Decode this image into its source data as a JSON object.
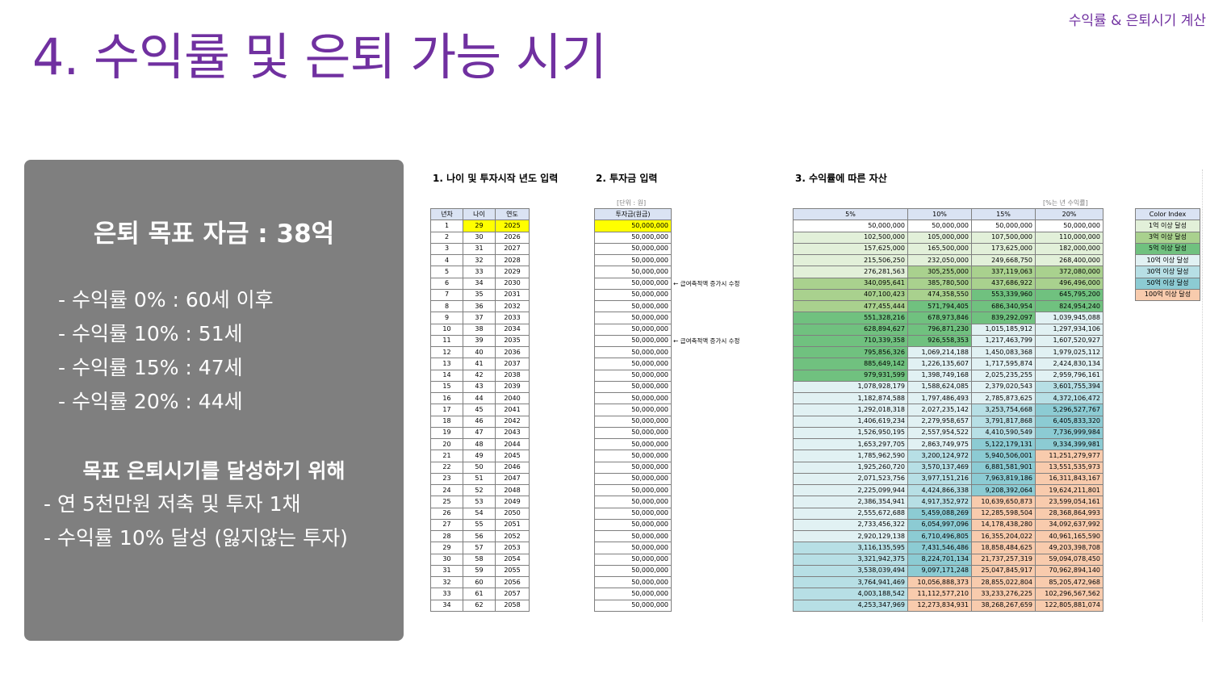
{
  "page": {
    "title": "4. 수익률 및 은퇴 가능 시기",
    "corner_title": "수익률 & 은퇴시기 계산"
  },
  "summary": {
    "goal": "은퇴 목표 자금 : 38억",
    "rates": [
      "- 수익률 0% : 60세 이후",
      "- 수익률 10% : 51세",
      "- 수익률 15% : 47세",
      "- 수익률 20% : 44세"
    ],
    "plan_heading": "목표 은퇴시기를 달성하기 위해",
    "plan_items": [
      "- 연 5천만원 저축 및 투자 1채",
      "- 수익률 10% 달성 (잃지않는 투자)"
    ]
  },
  "sections": {
    "age_title": "1. 나이 및 투자시작 년도 입력",
    "invest_title": "2. 투자금 입력",
    "asset_title": "3. 수익률에 따른 자산"
  },
  "notes": {
    "unit": "[단위 : 원]",
    "rate_unit": "[%는 년 수익률]",
    "salary_note": "← 급여축적액 증가시 수정"
  },
  "age_table": {
    "headers": [
      "년차",
      "나이",
      "연도"
    ]
  },
  "invest_table": {
    "header": "투자금(원금)"
  },
  "asset_table": {
    "headers": [
      "5%",
      "10%",
      "15%",
      "20%"
    ]
  },
  "rows": [
    {
      "n": "1",
      "age": "29",
      "year": "2025",
      "inv": "50,000,000",
      "v": [
        "50,000,000",
        "50,000,000",
        "50,000,000",
        "50,000,000"
      ]
    },
    {
      "n": "2",
      "age": "30",
      "year": "2026",
      "inv": "50,000,000",
      "v": [
        "102,500,000",
        "105,000,000",
        "107,500,000",
        "110,000,000"
      ]
    },
    {
      "n": "3",
      "age": "31",
      "year": "2027",
      "inv": "50,000,000",
      "v": [
        "157,625,000",
        "165,500,000",
        "173,625,000",
        "182,000,000"
      ]
    },
    {
      "n": "4",
      "age": "32",
      "year": "2028",
      "inv": "50,000,000",
      "v": [
        "215,506,250",
        "232,050,000",
        "249,668,750",
        "268,400,000"
      ]
    },
    {
      "n": "5",
      "age": "33",
      "year": "2029",
      "inv": "50,000,000",
      "v": [
        "276,281,563",
        "305,255,000",
        "337,119,063",
        "372,080,000"
      ]
    },
    {
      "n": "6",
      "age": "34",
      "year": "2030",
      "inv": "50,000,000",
      "v": [
        "340,095,641",
        "385,780,500",
        "437,686,922",
        "496,496,000"
      ]
    },
    {
      "n": "7",
      "age": "35",
      "year": "2031",
      "inv": "50,000,000",
      "v": [
        "407,100,423",
        "474,358,550",
        "553,339,960",
        "645,795,200"
      ]
    },
    {
      "n": "8",
      "age": "36",
      "year": "2032",
      "inv": "50,000,000",
      "v": [
        "477,455,444",
        "571,794,405",
        "686,340,954",
        "824,954,240"
      ]
    },
    {
      "n": "9",
      "age": "37",
      "year": "2033",
      "inv": "50,000,000",
      "v": [
        "551,328,216",
        "678,973,846",
        "839,292,097",
        "1,039,945,088"
      ]
    },
    {
      "n": "10",
      "age": "38",
      "year": "2034",
      "inv": "50,000,000",
      "v": [
        "628,894,627",
        "796,871,230",
        "1,015,185,912",
        "1,297,934,106"
      ]
    },
    {
      "n": "11",
      "age": "39",
      "year": "2035",
      "inv": "50,000,000",
      "v": [
        "710,339,358",
        "926,558,353",
        "1,217,463,799",
        "1,607,520,927"
      ]
    },
    {
      "n": "12",
      "age": "40",
      "year": "2036",
      "inv": "50,000,000",
      "v": [
        "795,856,326",
        "1,069,214,188",
        "1,450,083,368",
        "1,979,025,112"
      ]
    },
    {
      "n": "13",
      "age": "41",
      "year": "2037",
      "inv": "50,000,000",
      "v": [
        "885,649,142",
        "1,226,135,607",
        "1,717,595,874",
        "2,424,830,134"
      ]
    },
    {
      "n": "14",
      "age": "42",
      "year": "2038",
      "inv": "50,000,000",
      "v": [
        "979,931,599",
        "1,398,749,168",
        "2,025,235,255",
        "2,959,796,161"
      ]
    },
    {
      "n": "15",
      "age": "43",
      "year": "2039",
      "inv": "50,000,000",
      "v": [
        "1,078,928,179",
        "1,588,624,085",
        "2,379,020,543",
        "3,601,755,394"
      ]
    },
    {
      "n": "16",
      "age": "44",
      "year": "2040",
      "inv": "50,000,000",
      "v": [
        "1,182,874,588",
        "1,797,486,493",
        "2,785,873,625",
        "4,372,106,472"
      ]
    },
    {
      "n": "17",
      "age": "45",
      "year": "2041",
      "inv": "50,000,000",
      "v": [
        "1,292,018,318",
        "2,027,235,142",
        "3,253,754,668",
        "5,296,527,767"
      ]
    },
    {
      "n": "18",
      "age": "46",
      "year": "2042",
      "inv": "50,000,000",
      "v": [
        "1,406,619,234",
        "2,279,958,657",
        "3,791,817,868",
        "6,405,833,320"
      ]
    },
    {
      "n": "19",
      "age": "47",
      "year": "2043",
      "inv": "50,000,000",
      "v": [
        "1,526,950,195",
        "2,557,954,522",
        "4,410,590,549",
        "7,736,999,984"
      ]
    },
    {
      "n": "20",
      "age": "48",
      "year": "2044",
      "inv": "50,000,000",
      "v": [
        "1,653,297,705",
        "2,863,749,975",
        "5,122,179,131",
        "9,334,399,981"
      ]
    },
    {
      "n": "21",
      "age": "49",
      "year": "2045",
      "inv": "50,000,000",
      "v": [
        "1,785,962,590",
        "3,200,124,972",
        "5,940,506,001",
        "11,251,279,977"
      ]
    },
    {
      "n": "22",
      "age": "50",
      "year": "2046",
      "inv": "50,000,000",
      "v": [
        "1,925,260,720",
        "3,570,137,469",
        "6,881,581,901",
        "13,551,535,973"
      ]
    },
    {
      "n": "23",
      "age": "51",
      "year": "2047",
      "inv": "50,000,000",
      "v": [
        "2,071,523,756",
        "3,977,151,216",
        "7,963,819,186",
        "16,311,843,167"
      ]
    },
    {
      "n": "24",
      "age": "52",
      "year": "2048",
      "inv": "50,000,000",
      "v": [
        "2,225,099,944",
        "4,424,866,338",
        "9,208,392,064",
        "19,624,211,801"
      ]
    },
    {
      "n": "25",
      "age": "53",
      "year": "2049",
      "inv": "50,000,000",
      "v": [
        "2,386,354,941",
        "4,917,352,972",
        "10,639,650,873",
        "23,599,054,161"
      ]
    },
    {
      "n": "26",
      "age": "54",
      "year": "2050",
      "inv": "50,000,000",
      "v": [
        "2,555,672,688",
        "5,459,088,269",
        "12,285,598,504",
        "28,368,864,993"
      ]
    },
    {
      "n": "27",
      "age": "55",
      "year": "2051",
      "inv": "50,000,000",
      "v": [
        "2,733,456,322",
        "6,054,997,096",
        "14,178,438,280",
        "34,092,637,992"
      ]
    },
    {
      "n": "28",
      "age": "56",
      "year": "2052",
      "inv": "50,000,000",
      "v": [
        "2,920,129,138",
        "6,710,496,805",
        "16,355,204,022",
        "40,961,165,590"
      ]
    },
    {
      "n": "29",
      "age": "57",
      "year": "2053",
      "inv": "50,000,000",
      "v": [
        "3,116,135,595",
        "7,431,546,486",
        "18,858,484,625",
        "49,203,398,708"
      ]
    },
    {
      "n": "30",
      "age": "58",
      "year": "2054",
      "inv": "50,000,000",
      "v": [
        "3,321,942,375",
        "8,224,701,134",
        "21,737,257,319",
        "59,094,078,450"
      ]
    },
    {
      "n": "31",
      "age": "59",
      "year": "2055",
      "inv": "50,000,000",
      "v": [
        "3,538,039,494",
        "9,097,171,248",
        "25,047,845,917",
        "70,962,894,140"
      ]
    },
    {
      "n": "32",
      "age": "60",
      "year": "2056",
      "inv": "50,000,000",
      "v": [
        "3,764,941,469",
        "10,056,888,373",
        "28,855,022,804",
        "85,205,472,968"
      ]
    },
    {
      "n": "33",
      "age": "61",
      "year": "2057",
      "inv": "50,000,000",
      "v": [
        "4,003,188,542",
        "11,112,577,210",
        "33,233,276,225",
        "102,296,567,562"
      ]
    },
    {
      "n": "34",
      "age": "62",
      "year": "2058",
      "inv": "50,000,000",
      "v": [
        "4,253,347,969",
        "12,273,834,931",
        "38,268,267,659",
        "122,805,881,074"
      ]
    }
  ],
  "legend": {
    "header": "Color Index",
    "items": [
      {
        "label": "1억 이상 달성",
        "color": "#e2f0d9"
      },
      {
        "label": "3억 이상 달성",
        "color": "#a9d18e"
      },
      {
        "label": "5억 이상 달성",
        "color": "#70c17f"
      },
      {
        "label": "10억 이상 달성",
        "color": "#e1f1f3"
      },
      {
        "label": "30억 이상 달성",
        "color": "#b7dfe5"
      },
      {
        "label": "50억 이상 달성",
        "color": "#8ccbd3"
      },
      {
        "label": "100억 이상 달성",
        "color": "#f8cbad"
      }
    ]
  },
  "colors": {
    "title": "#7030a0",
    "box": "#7f7f7f",
    "input_highlight": "#ffff00",
    "header_fill": "#dae3f3"
  }
}
